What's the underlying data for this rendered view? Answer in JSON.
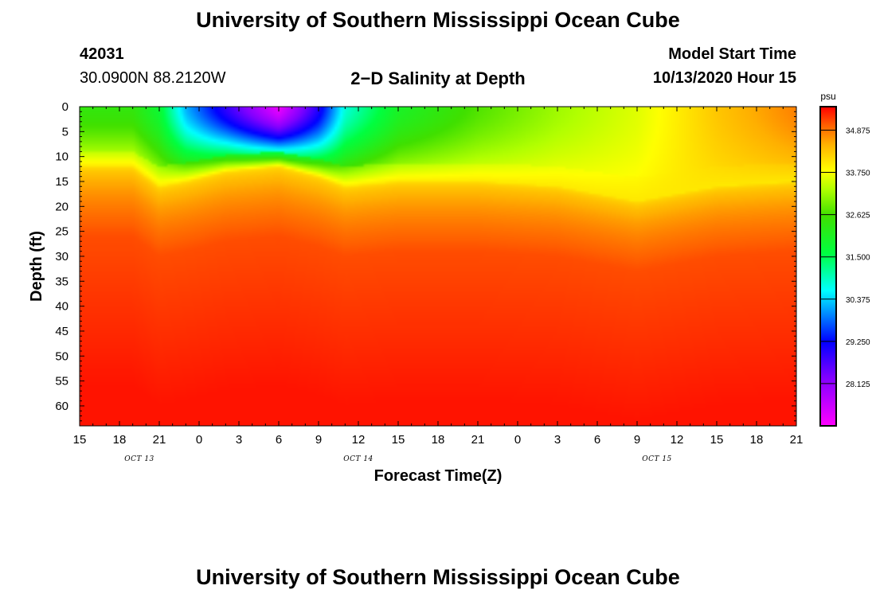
{
  "page": {
    "title_top": "University of Southern Mississippi Ocean Cube",
    "title_bottom": "University of Southern Mississippi Ocean Cube",
    "station_id": "42031",
    "station_coords": "30.0900N 88.2120W",
    "plot_title": "2−D Salinity at Depth",
    "model_start_label": "Model Start Time",
    "model_start_value": "10/13/2020 Hour 15"
  },
  "chart_data": {
    "type": "heatmap",
    "title": "2−D Salinity at Depth",
    "xlabel": "Forecast Time(Z)",
    "ylabel": "Depth (ft)",
    "x_range_hours": [
      0,
      54
    ],
    "y_range_ft": [
      0,
      64
    ],
    "x_tick_labels": [
      "15",
      "18",
      "21",
      "0",
      "3",
      "6",
      "9",
      "12",
      "15",
      "18",
      "21",
      "0",
      "3",
      "6",
      "9",
      "12",
      "15",
      "18",
      "21"
    ],
    "x_tick_hours": [
      0,
      3,
      6,
      9,
      12,
      15,
      18,
      21,
      24,
      27,
      30,
      33,
      36,
      39,
      42,
      45,
      48,
      51,
      54
    ],
    "date_labels": [
      {
        "text": "OCT 13",
        "hour": 4.5
      },
      {
        "text": "OCT 14",
        "hour": 21
      },
      {
        "text": "OCT 15",
        "hour": 43.5
      }
    ],
    "y_ticks": [
      0,
      5,
      10,
      15,
      20,
      25,
      30,
      35,
      40,
      45,
      50,
      55,
      60
    ],
    "colorbar": {
      "unit": "psu",
      "min": 27.0,
      "max": 35.5,
      "labels": [
        "34.875",
        "33.750",
        "32.625",
        "31.500",
        "30.375",
        "29.250",
        "28.125"
      ],
      "label_values": [
        34.875,
        33.75,
        32.625,
        31.5,
        30.375,
        29.25,
        28.125
      ],
      "colormap": [
        {
          "v": 27.0,
          "color": "#ff00ff"
        },
        {
          "v": 28.3,
          "color": "#7f00ff"
        },
        {
          "v": 29.25,
          "color": "#0000ff"
        },
        {
          "v": 30.1,
          "color": "#00a0ff"
        },
        {
          "v": 30.6,
          "color": "#00ffff"
        },
        {
          "v": 31.6,
          "color": "#00ff40"
        },
        {
          "v": 32.6,
          "color": "#40e000"
        },
        {
          "v": 33.3,
          "color": "#b0ff00"
        },
        {
          "v": 33.8,
          "color": "#ffff00"
        },
        {
          "v": 34.5,
          "color": "#ffb000"
        },
        {
          "v": 35.0,
          "color": "#ff6000"
        },
        {
          "v": 35.5,
          "color": "#ff0000"
        }
      ]
    },
    "surface_salinity_profile": [
      {
        "hour": 0,
        "surface_psu": 32.4,
        "mixed_layer_bottom_ft": 12
      },
      {
        "hour": 4,
        "surface_psu": 32.4,
        "mixed_layer_bottom_ft": 12
      },
      {
        "hour": 6,
        "surface_psu": 31.8,
        "mixed_layer_bottom_ft": 16
      },
      {
        "hour": 8,
        "surface_psu": 30.2,
        "mixed_layer_bottom_ft": 15
      },
      {
        "hour": 11,
        "surface_psu": 28.9,
        "mixed_layer_bottom_ft": 13
      },
      {
        "hour": 15,
        "surface_psu": 27.2,
        "mixed_layer_bottom_ft": 12
      },
      {
        "hour": 18,
        "surface_psu": 29.0,
        "mixed_layer_bottom_ft": 14
      },
      {
        "hour": 20,
        "surface_psu": 30.8,
        "mixed_layer_bottom_ft": 16
      },
      {
        "hour": 24,
        "surface_psu": 32.0,
        "mixed_layer_bottom_ft": 15
      },
      {
        "hour": 30,
        "surface_psu": 32.7,
        "mixed_layer_bottom_ft": 15
      },
      {
        "hour": 36,
        "surface_psu": 33.2,
        "mixed_layer_bottom_ft": 16
      },
      {
        "hour": 42,
        "surface_psu": 33.6,
        "mixed_layer_bottom_ft": 19
      },
      {
        "hour": 48,
        "surface_psu": 34.3,
        "mixed_layer_bottom_ft": 16
      },
      {
        "hour": 54,
        "surface_psu": 34.8,
        "mixed_layer_bottom_ft": 15
      }
    ],
    "deep_salinity_psu": 35.4,
    "x_gridlines": false,
    "y_gridlines": false
  }
}
